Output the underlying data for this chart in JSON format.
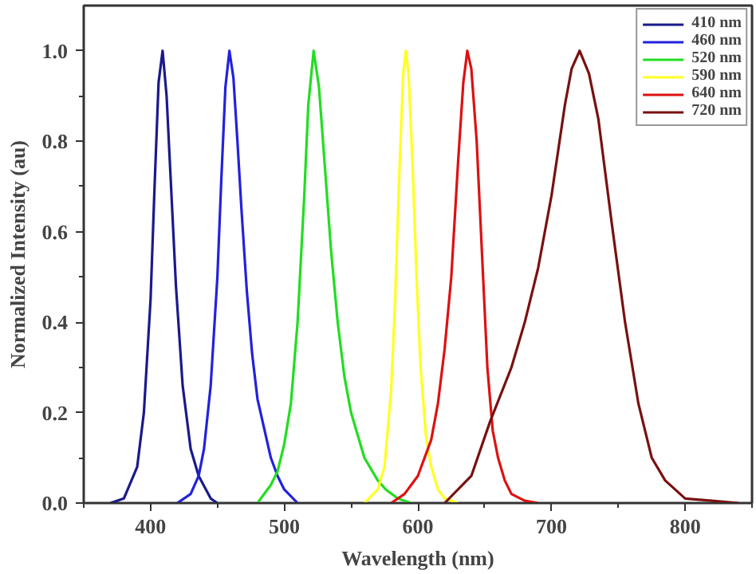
{
  "chart_data": {
    "type": "line",
    "xlabel": "Wavelength (nm)",
    "ylabel": "Normalized Intensity (au)",
    "xlim": [
      350,
      850
    ],
    "xticks": [
      400,
      500,
      600,
      700,
      800
    ],
    "ylim": [
      0,
      1.1
    ],
    "yticks": [
      {
        "value": 0,
        "label": "0.0"
      },
      0.2,
      0.4,
      0.6,
      0.8,
      {
        "value": 1,
        "label": "1.0"
      }
    ],
    "grid": false,
    "legend": "top right",
    "marker": "none",
    "line_style": "solid",
    "series": [
      {
        "name": "410 nm",
        "color": "#1a1a8c",
        "x": [
          370,
          380,
          390,
          395,
          400,
          403,
          406,
          409,
          412,
          415,
          419,
          424,
          430,
          436,
          445,
          450
        ],
        "values": [
          0,
          0.01,
          0.08,
          0.2,
          0.45,
          0.7,
          0.93,
          1.0,
          0.9,
          0.72,
          0.48,
          0.26,
          0.12,
          0.06,
          0.01,
          0
        ]
      },
      {
        "name": "460 nm",
        "color": "#2222dd",
        "x": [
          420,
          430,
          436,
          440,
          445,
          450,
          453,
          456,
          459,
          462,
          465,
          468,
          472,
          476,
          480,
          490,
          495,
          500,
          510
        ],
        "values": [
          0,
          0.02,
          0.06,
          0.12,
          0.26,
          0.5,
          0.72,
          0.92,
          1.0,
          0.94,
          0.8,
          0.65,
          0.47,
          0.33,
          0.23,
          0.1,
          0.06,
          0.03,
          0
        ]
      },
      {
        "name": "520 nm",
        "color": "#22dd22",
        "x": [
          480,
          490,
          495,
          500,
          505,
          510,
          515,
          518,
          522,
          526,
          530,
          535,
          540,
          545,
          550,
          560,
          570,
          576,
          585,
          595
        ],
        "values": [
          0,
          0.04,
          0.07,
          0.13,
          0.22,
          0.4,
          0.68,
          0.88,
          1.0,
          0.92,
          0.76,
          0.56,
          0.4,
          0.28,
          0.2,
          0.1,
          0.05,
          0.03,
          0.01,
          0
        ]
      },
      {
        "name": "590 nm",
        "color": "#ffff22",
        "x": [
          560,
          570,
          575,
          580,
          583,
          586,
          589,
          591,
          593,
          596,
          599,
          602,
          606,
          610,
          615,
          620,
          630
        ],
        "values": [
          0,
          0.03,
          0.08,
          0.25,
          0.45,
          0.72,
          0.95,
          1.0,
          0.95,
          0.75,
          0.5,
          0.3,
          0.15,
          0.08,
          0.03,
          0.01,
          0
        ]
      },
      {
        "name": "640 nm",
        "color": "#dd1111",
        "x": [
          580,
          590,
          600,
          610,
          615,
          620,
          625,
          630,
          634,
          637,
          640,
          644,
          648,
          652,
          656,
          660,
          665,
          670,
          680,
          690
        ],
        "values": [
          0,
          0.02,
          0.06,
          0.14,
          0.22,
          0.34,
          0.5,
          0.75,
          0.93,
          1.0,
          0.96,
          0.8,
          0.55,
          0.3,
          0.16,
          0.1,
          0.05,
          0.02,
          0.005,
          0
        ]
      },
      {
        "name": "720 nm",
        "color": "#7a1010",
        "x": [
          620,
          640,
          654,
          670,
          680,
          690,
          700,
          710,
          715,
          721,
          728,
          735,
          745,
          755,
          765,
          775,
          785,
          800,
          820,
          840
        ],
        "values": [
          0,
          0.06,
          0.18,
          0.3,
          0.4,
          0.52,
          0.68,
          0.88,
          0.96,
          1.0,
          0.95,
          0.85,
          0.62,
          0.4,
          0.22,
          0.1,
          0.05,
          0.01,
          0.005,
          0
        ]
      }
    ]
  }
}
